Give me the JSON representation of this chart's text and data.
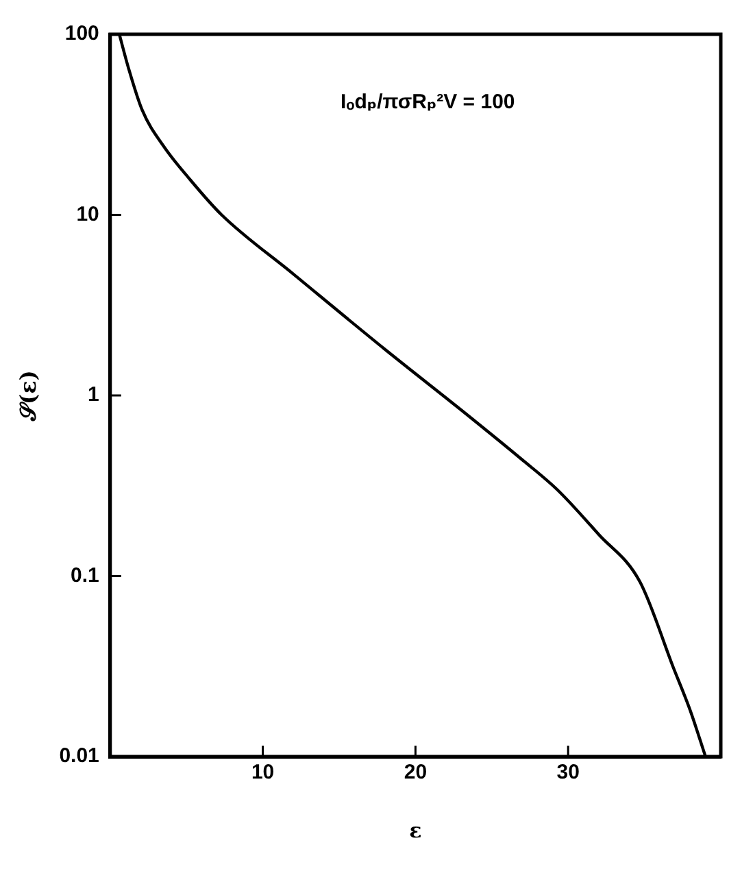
{
  "chart_data": {
    "type": "line",
    "xlabel": "ε",
    "ylabel": "𝒮(ε)",
    "x": [
      0.6,
      1.2,
      2.1,
      3.5,
      5.2,
      7.3,
      12,
      18,
      23.4,
      27,
      29.3,
      32,
      34.7,
      36.9,
      38,
      39
    ],
    "series": [
      {
        "color": "#000000",
        "values": [
          100,
          65,
          38,
          24,
          15.8,
          10,
          4.7,
          1.8,
          0.78,
          0.44,
          0.3,
          0.17,
          0.093,
          0.031,
          0.018,
          0.01
        ]
      }
    ],
    "xlim": [
      0,
      40
    ],
    "xticks": [
      10,
      20,
      30
    ],
    "ylim": [
      0.01,
      100
    ],
    "yticks": [
      0.01,
      0.1,
      1,
      10,
      100
    ],
    "log": "y",
    "marker": "none",
    "line_style": "solid",
    "grid": false,
    "legend": false,
    "annotations": [
      "Iₒdₚ/πσRₚ²V = 100"
    ]
  }
}
